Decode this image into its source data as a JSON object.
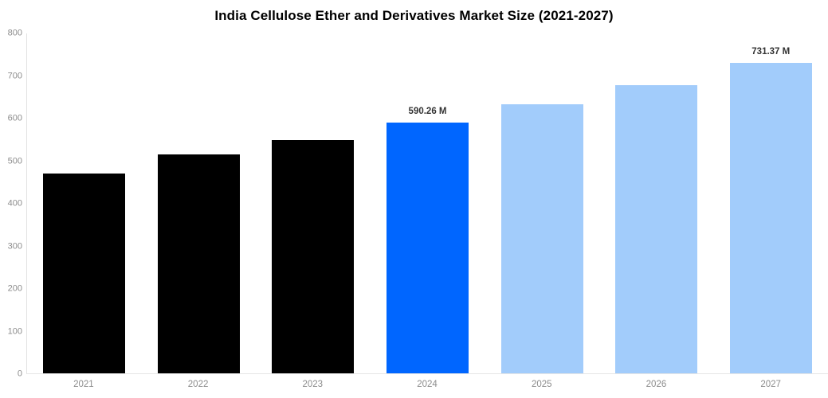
{
  "page": {
    "background_color": "#ffffff"
  },
  "chart_data": {
    "type": "bar",
    "title": "India Cellulose Ether and Derivatives Market Size (2021-2027)",
    "xlabel": "",
    "ylabel": "",
    "categories": [
      "2021",
      "2022",
      "2023",
      "2024",
      "2025",
      "2026",
      "2027"
    ],
    "values": [
      470,
      515,
      549,
      590.26,
      633,
      678,
      731.37
    ],
    "bar_colors": [
      "#000000",
      "#000000",
      "#000000",
      "#0066ff",
      "#a2ccfb",
      "#a2ccfb",
      "#a2ccfb"
    ],
    "data_labels": [
      "",
      "",
      "",
      "590.26 M",
      "",
      "",
      "731.37 M"
    ],
    "ylim": [
      0,
      800
    ],
    "yticks": [
      0,
      100,
      200,
      300,
      400,
      500,
      600,
      700,
      800
    ],
    "grid": false,
    "legend_position": "none",
    "colors": {
      "title_color": "#000000",
      "axis_line_color": "#e2e2e2",
      "tick_label_color": "#8c8c8c",
      "data_label_color": "#333333",
      "highlight_bar_color": "#0066ff",
      "forecast_bar_color": "#a2ccfb",
      "historical_bar_color": "#000000"
    }
  }
}
